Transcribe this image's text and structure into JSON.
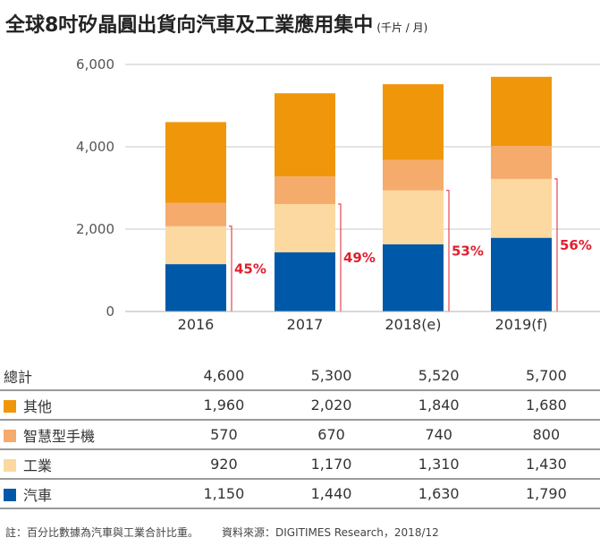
{
  "title": "全球8吋矽晶圓出貨向汽車及工業應用集中",
  "unit": "(千片 / 月)",
  "chart_data": {
    "type": "bar",
    "stacked": true,
    "categories": [
      "2016",
      "2017",
      "2018(e)",
      "2019(f)"
    ],
    "ylim": [
      0,
      6000
    ],
    "yticks": [
      "0",
      "2,000",
      "4,000",
      "6,000"
    ],
    "series": [
      {
        "name": "汽車",
        "color": "#0059a8",
        "values": [
          1150,
          1440,
          1630,
          1790
        ],
        "labels": [
          "1,150",
          "1,440",
          "1,630",
          "1,790"
        ]
      },
      {
        "name": "工業",
        "color": "#fcd9a0",
        "values": [
          920,
          1170,
          1310,
          1430
        ],
        "labels": [
          "920",
          "1,170",
          "1,310",
          "1,430"
        ]
      },
      {
        "name": "智慧型手機",
        "color": "#f5ab6c",
        "values": [
          570,
          670,
          740,
          800
        ],
        "labels": [
          "570",
          "670",
          "740",
          "800"
        ]
      },
      {
        "name": "其他",
        "color": "#f0960a",
        "values": [
          1960,
          2020,
          1840,
          1680
        ],
        "labels": [
          "1,960",
          "2,020",
          "1,840",
          "1,680"
        ]
      }
    ],
    "totals": {
      "name": "總計",
      "values": [
        4600,
        5300,
        5520,
        5700
      ],
      "labels": [
        "4,600",
        "5,300",
        "5,520",
        "5,700"
      ]
    },
    "share_labels": [
      "45%",
      "49%",
      "53%",
      "56%"
    ],
    "share_color": "#e0202e",
    "grid": true,
    "legend": "table-below"
  },
  "footnote": "註：百分比數據為汽車與工業合計比重。",
  "source": "資料來源：DIGITIMES Research，2018/12"
}
